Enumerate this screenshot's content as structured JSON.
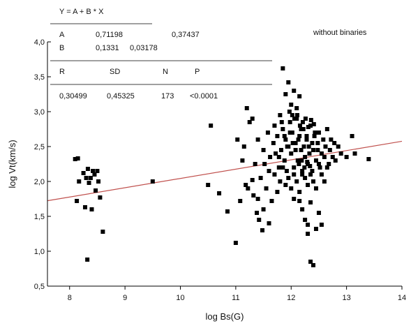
{
  "chart_data": {
    "type": "scatter",
    "xlabel": "log Bs(G)",
    "ylabel": "log Vt(km/s)",
    "xlim": [
      7.6,
      14
    ],
    "ylim": [
      0.5,
      4.0
    ],
    "x_ticks": [
      8,
      9,
      10,
      11,
      12,
      13,
      14
    ],
    "x_tick_labels": [
      "8",
      "9",
      "10",
      "11",
      "12",
      "13",
      "14"
    ],
    "y_ticks": [
      0.5,
      1.0,
      1.5,
      2.0,
      2.5,
      3.0,
      3.5,
      4.0
    ],
    "y_tick_labels": [
      "0,5",
      "1,0",
      "1,5",
      "2,0",
      "2,5",
      "3,0",
      "3,5",
      "4,0"
    ],
    "annotation": "without binaries",
    "fit_line": {
      "formula": "Y = A + B * X",
      "intercept": 0.71198,
      "slope": 0.1331,
      "x": [
        7.6,
        14.0
      ],
      "color": "#c0504d"
    },
    "stats_table": {
      "A_row": [
        "A",
        "0,71198",
        "0,37437"
      ],
      "B_row": [
        "B",
        "0,1331",
        "0,03178"
      ],
      "header": [
        "R",
        "SD",
        "N",
        "P"
      ],
      "values": [
        "0,30499",
        "0,45325",
        "173",
        "<0.0001"
      ]
    },
    "marker_color": "#000000",
    "x": [
      8.1,
      8.13,
      8.15,
      8.17,
      8.25,
      8.28,
      8.3,
      8.32,
      8.33,
      8.35,
      8.38,
      8.4,
      8.42,
      8.45,
      8.47,
      8.5,
      8.52,
      8.55,
      8.6,
      9.5,
      10.5,
      10.55,
      10.7,
      10.85,
      11.0,
      11.03,
      11.08,
      11.12,
      11.15,
      11.18,
      11.2,
      11.22,
      11.25,
      11.3,
      11.32,
      11.35,
      11.38,
      11.4,
      11.42,
      11.45,
      11.48,
      11.5,
      11.52,
      11.55,
      11.58,
      11.6,
      11.62,
      11.65,
      11.68,
      11.7,
      11.72,
      11.75,
      11.78,
      11.8,
      11.82,
      11.85,
      11.88,
      11.9,
      11.92,
      11.95,
      11.98,
      12.0,
      12.02,
      12.05,
      12.08,
      12.1,
      12.12,
      12.15,
      12.18,
      12.2,
      12.22,
      12.25,
      12.28,
      12.3,
      12.32,
      12.35,
      12.38,
      12.4,
      12.42,
      12.45,
      12.48,
      12.5,
      12.52,
      12.55,
      12.58,
      12.6,
      12.62,
      12.65,
      12.68,
      12.7,
      12.72,
      12.75,
      12.78,
      12.8,
      12.85,
      12.9,
      13.0,
      13.1,
      13.15,
      13.4,
      11.85,
      11.9,
      11.95,
      12.0,
      12.05,
      12.1,
      12.15,
      12.2,
      12.25,
      12.3,
      12.35,
      12.4,
      12.45,
      12.5,
      12.55,
      11.7,
      11.75,
      11.8,
      11.85,
      11.9,
      11.95,
      12.0,
      12.05,
      12.1,
      12.15,
      12.2,
      12.25,
      12.3,
      12.35,
      12.4,
      12.45,
      12.5,
      12.55,
      12.6,
      12.65,
      11.88,
      11.93,
      11.98,
      12.03,
      12.08,
      12.13,
      12.18,
      12.23,
      12.28,
      12.33,
      12.38,
      12.43,
      12.48,
      11.78,
      11.83,
      12.06,
      12.11,
      12.16,
      12.21,
      12.26,
      12.31,
      12.36,
      12.41,
      11.97,
      12.02,
      12.14,
      12.19,
      12.24,
      12.29,
      12.34,
      11.5,
      11.6,
      11.4,
      12.3,
      12.35,
      11.3,
      12.05,
      12.15
    ],
    "y": [
      2.32,
      1.72,
      2.33,
      2.0,
      2.12,
      1.63,
      2.05,
      0.88,
      2.18,
      1.98,
      2.05,
      1.6,
      2.15,
      2.1,
      1.87,
      2.15,
      2.0,
      1.77,
      1.28,
      2.0,
      1.95,
      2.8,
      1.83,
      1.57,
      1.12,
      2.6,
      1.72,
      2.3,
      2.5,
      1.95,
      3.05,
      1.9,
      2.85,
      2.02,
      1.8,
      2.25,
      1.55,
      2.6,
      1.45,
      2.05,
      1.3,
      2.45,
      2.25,
      1.9,
      2.7,
      2.15,
      2.35,
      1.72,
      2.55,
      2.8,
      2.4,
      2.65,
      2.2,
      2.95,
      2.45,
      2.75,
      2.3,
      2.6,
      2.15,
      2.5,
      2.85,
      2.4,
      2.7,
      2.2,
      2.55,
      2.9,
      2.3,
      2.65,
      2.45,
      2.1,
      2.75,
      2.35,
      2.6,
      2.25,
      2.5,
      2.8,
      2.15,
      2.45,
      2.65,
      2.3,
      2.55,
      2.7,
      2.2,
      2.4,
      2.6,
      2.35,
      2.5,
      2.75,
      2.25,
      2.45,
      2.6,
      2.35,
      2.55,
      2.3,
      2.5,
      2.4,
      2.35,
      2.65,
      2.4,
      2.32,
      3.62,
      3.25,
      3.42,
      3.1,
      1.75,
      3.05,
      1.72,
      1.6,
      1.45,
      1.38,
      0.85,
      0.8,
      1.32,
      1.55,
      1.38,
      2.1,
      1.85,
      2.0,
      2.2,
      1.95,
      2.05,
      1.9,
      2.1,
      2.0,
      1.85,
      2.15,
      2.05,
      1.95,
      2.1,
      2.0,
      1.9,
      2.25,
      2.1,
      2.0,
      2.2,
      2.65,
      2.5,
      2.7,
      2.55,
      2.45,
      2.6,
      2.75,
      2.5,
      2.65,
      2.4,
      2.55,
      2.7,
      2.45,
      2.35,
      2.85,
      2.9,
      2.95,
      2.8,
      2.85,
      2.9,
      2.78,
      2.88,
      2.82,
      3.0,
      2.95,
      2.25,
      2.3,
      2.2,
      2.28,
      2.22,
      1.6,
      1.4,
      1.75,
      1.25,
      1.7,
      2.9,
      3.3,
      3.22
    ]
  }
}
